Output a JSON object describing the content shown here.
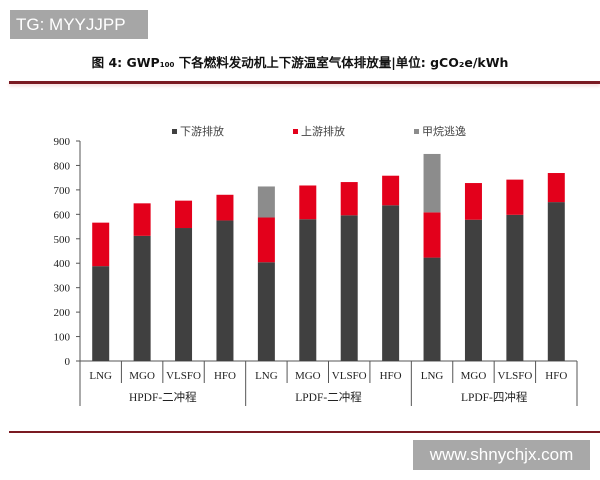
{
  "watermark_top": "TG: MYYJJPP",
  "watermark_bottom": "www.shnychjx.com",
  "title": {
    "prefix": "图 4: GWP",
    "sub": "100",
    "suffix": " 下各燃料发动机上下游温室气体排放量|单位: gCO₂e/kWh"
  },
  "chart_data": {
    "type": "bar",
    "stacked": true,
    "title": "图 4: GWP100 下各燃料发动机上下游温室气体排放量|单位: gCO2e/kWh",
    "xlabel": "",
    "ylabel": "gCO2e/kWh",
    "ylim": [
      0,
      900
    ],
    "yticks": [
      0,
      100,
      200,
      300,
      400,
      500,
      600,
      700,
      800,
      900
    ],
    "grid": false,
    "legend_position": "top",
    "groups": [
      {
        "name": "HPDF-二冲程",
        "categories": [
          "LNG",
          "MGO",
          "VLSFO",
          "HFO"
        ]
      },
      {
        "name": "LPDF-二冲程",
        "categories": [
          "LNG",
          "MGO",
          "VLSFO",
          "HFO"
        ]
      },
      {
        "name": "LPDF-四冲程",
        "categories": [
          "LNG",
          "MGO",
          "VLSFO",
          "HFO"
        ]
      }
    ],
    "categories": [
      "LNG",
      "MGO",
      "VLSFO",
      "HFO",
      "LNG",
      "MGO",
      "VLSFO",
      "HFO",
      "LNG",
      "MGO",
      "VLSFO",
      "HFO"
    ],
    "series": [
      {
        "name": "下游排放",
        "color": "#404040",
        "values": [
          388,
          512,
          544,
          575,
          404,
          580,
          596,
          637,
          423,
          578,
          598,
          650
        ]
      },
      {
        "name": "上游排放",
        "color": "#e3001b",
        "values": [
          178,
          133,
          112,
          105,
          183,
          138,
          136,
          121,
          185,
          150,
          144,
          119
        ]
      },
      {
        "name": "甲烷逃逸",
        "color": "#8c8c8c",
        "values": [
          0,
          0,
          0,
          0,
          127,
          0,
          0,
          0,
          239,
          0,
          0,
          0
        ]
      }
    ]
  }
}
